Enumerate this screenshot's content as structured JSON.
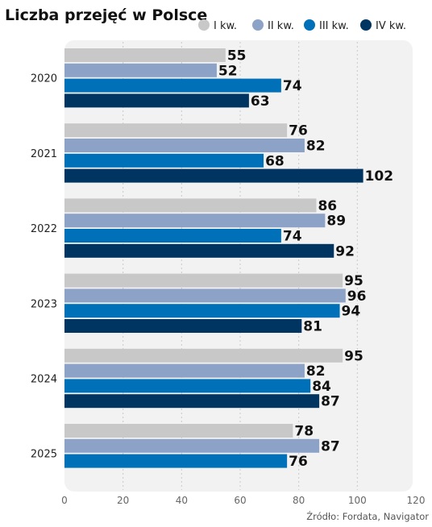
{
  "chart_data": {
    "type": "bar",
    "orientation": "horizontal",
    "title": "Liczba przejęć w Polsce",
    "source": "Źródło: Fordata, Navigator",
    "categories": [
      "2020",
      "2021",
      "2022",
      "2023",
      "2024",
      "2025"
    ],
    "series": [
      {
        "name": "I kw.",
        "color": "#c8c8c8",
        "values": [
          55,
          76,
          86,
          95,
          95,
          78
        ]
      },
      {
        "name": "II kw.",
        "color": "#8da2c7",
        "values": [
          52,
          82,
          89,
          96,
          82,
          87
        ]
      },
      {
        "name": "III kw.",
        "color": "#0070b8",
        "values": [
          74,
          68,
          74,
          94,
          84,
          76
        ]
      },
      {
        "name": "IV kw.",
        "color": "#003561",
        "values": [
          63,
          102,
          92,
          81,
          87,
          null
        ]
      }
    ],
    "xlim": [
      0,
      120
    ],
    "xticks": [
      "0",
      "20",
      "40",
      "60",
      "80",
      "100",
      "120"
    ],
    "grid": "vertical dotted",
    "legend_position": "top-right"
  }
}
